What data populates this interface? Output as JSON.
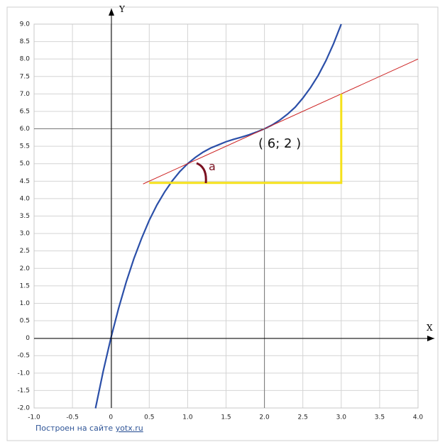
{
  "chart_data": {
    "type": "line",
    "x_axis_label": "X",
    "y_axis_label": "Y",
    "annotations": [
      "( 6; 2 )",
      "a"
    ],
    "footer": {
      "text": "Построен на сайте",
      "link": "yotx.ru"
    },
    "grid": true,
    "xlim": [
      -1.0,
      4.0
    ],
    "ylim": [
      -2.0,
      9.0
    ],
    "xticks": [
      {
        "value": -1,
        "label": "-1.0"
      },
      {
        "value": -0.5,
        "label": "-0.5"
      },
      0,
      0.5,
      {
        "value": 1,
        "label": "1.0"
      },
      1.5,
      {
        "value": 2,
        "label": "2.0"
      },
      2.5,
      {
        "value": 3,
        "label": "3.0"
      },
      3.5,
      {
        "value": 4,
        "label": "4.0"
      }
    ],
    "yticks": [
      {
        "value": -2,
        "label": "-2.0"
      },
      -1.5,
      {
        "value": -1,
        "label": "-1.0"
      },
      -0.5,
      0,
      0.5,
      {
        "value": 1,
        "label": "1.0"
      },
      1.5,
      {
        "value": 2,
        "label": "2.0"
      },
      2.5,
      {
        "value": 3,
        "label": "3.0"
      },
      3.5,
      {
        "value": 4,
        "label": "4.0"
      },
      4.5,
      {
        "value": 5,
        "label": "5.0"
      },
      5.5,
      {
        "value": 6,
        "label": "6.0"
      },
      6.5,
      {
        "value": 7,
        "label": "7.0"
      },
      7.5,
      {
        "value": 8,
        "label": "8.0"
      },
      8.5,
      {
        "value": 9,
        "label": "9.0"
      }
    ],
    "series": [
      {
        "color": "#2b4fa8",
        "width": 2.2,
        "x": [
          -0.2,
          -0.1,
          0,
          0.1,
          0.2,
          0.3,
          0.4,
          0.5,
          0.6,
          0.7,
          0.8,
          0.9,
          1.0,
          1.1,
          1.2,
          1.3,
          1.4,
          1.5,
          1.6,
          1.7,
          1.8,
          1.9,
          2.0,
          2.1,
          2.2,
          2.3,
          2.4,
          2.5,
          2.6,
          2.7,
          2.8,
          2.9,
          3.0
        ],
        "values": [
          -2.01,
          -0.95,
          0,
          0.85,
          1.61,
          2.28,
          2.86,
          3.38,
          3.82,
          4.19,
          4.51,
          4.78,
          5,
          5.18,
          5.33,
          5.45,
          5.54,
          5.63,
          5.7,
          5.76,
          5.83,
          5.91,
          6,
          6.11,
          6.25,
          6.42,
          6.62,
          6.88,
          7.18,
          7.53,
          7.95,
          8.44,
          9
        ]
      },
      {
        "color": "#cc2020",
        "width": 1,
        "x": [
          0.42,
          4.0
        ],
        "values": [
          4.42,
          8.0
        ]
      },
      {
        "color": "#777777",
        "width": 1,
        "x": [
          -1.0,
          2.0,
          2.0
        ],
        "values": [
          6.0,
          6.0,
          -2.0
        ]
      },
      {
        "color": "#f5e11a",
        "width": 3,
        "x": [
          0.5,
          3.0,
          3.0
        ],
        "values": [
          4.45,
          4.45,
          7.0
        ]
      }
    ]
  }
}
